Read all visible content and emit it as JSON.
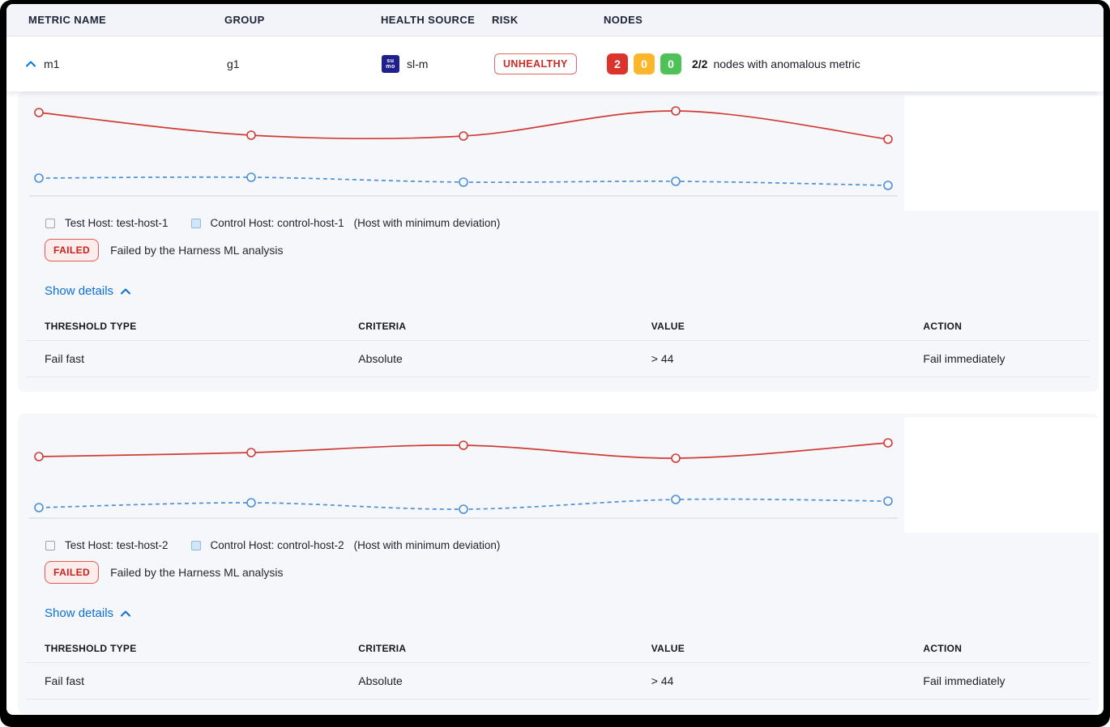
{
  "table": {
    "columns": [
      "METRIC NAME",
      "GROUP",
      "HEALTH SOURCE",
      "RISK",
      "NODES"
    ],
    "row": {
      "metric_name": "m1",
      "group": "g1",
      "health_source": "sl-m",
      "health_source_icon_lines": [
        "su",
        "mo"
      ],
      "risk": "UNHEALTHY",
      "nodes": {
        "error_count": "2",
        "warning_count": "0",
        "healthy_count": "0",
        "ratio": "2/2",
        "label": "nodes with anomalous metric"
      }
    }
  },
  "cards": [
    {
      "legend": {
        "test_label": "Test Host: test-host-1",
        "control_label": "Control Host: control-host-1",
        "deviation_note": "(Host with minimum deviation)"
      },
      "failed": {
        "badge": "FAILED",
        "message": "Failed by the Harness ML analysis"
      },
      "show_details_label": "Show details",
      "details": {
        "columns": [
          "THRESHOLD TYPE",
          "CRITERIA",
          "VALUE",
          "ACTION"
        ],
        "row": [
          "Fail fast",
          "Absolute",
          "> 44",
          "Fail immediately"
        ]
      }
    },
    {
      "legend": {
        "test_label": "Test Host: test-host-2",
        "control_label": "Control Host: control-host-2",
        "deviation_note": "(Host with minimum deviation)"
      },
      "failed": {
        "badge": "FAILED",
        "message": "Failed by the Harness ML analysis"
      },
      "show_details_label": "Show details",
      "details": {
        "columns": [
          "THRESHOLD TYPE",
          "CRITERIA",
          "VALUE",
          "ACTION"
        ],
        "row": [
          "Fail fast",
          "Absolute",
          "> 44",
          "Fail immediately"
        ]
      }
    }
  ],
  "chart_data": [
    {
      "type": "line",
      "x": [
        1,
        2,
        3,
        4,
        5
      ],
      "series": [
        {
          "name": "Test Host: test-host-1",
          "style": "solid",
          "values": [
            103,
            75,
            74,
            105,
            70
          ]
        },
        {
          "name": "Control Host: control-host-1",
          "style": "dashed",
          "values": [
            22,
            23,
            17,
            18,
            13
          ]
        }
      ],
      "title": "",
      "xlabel": "",
      "ylabel": "",
      "ylim": [
        0,
        124
      ],
      "grid": false,
      "axes_labeled": false,
      "legend_position": "below"
    },
    {
      "type": "line",
      "x": [
        1,
        2,
        3,
        4,
        5
      ],
      "series": [
        {
          "name": "Test Host: test-host-2",
          "style": "solid",
          "values": [
            76,
            81,
            90,
            74,
            93
          ]
        },
        {
          "name": "Control Host: control-host-2",
          "style": "dashed",
          "values": [
            13,
            19,
            11,
            23,
            21
          ]
        }
      ],
      "title": "",
      "xlabel": "",
      "ylabel": "",
      "ylim": [
        0,
        124
      ],
      "grid": false,
      "axes_labeled": false,
      "legend_position": "below"
    }
  ],
  "colors": {
    "test_line": "#cf3c36",
    "control_line": "#4a90d9",
    "baseline": "#d5d9e6",
    "marker_fill": "#f6f7fb",
    "accent_blue": "#0b6fd6",
    "risk_red": "#cd2a26",
    "node_red": "#da342d",
    "node_yellow": "#fcb62b",
    "node_green": "#4ec157",
    "card_bg": "#f6f7fb"
  }
}
